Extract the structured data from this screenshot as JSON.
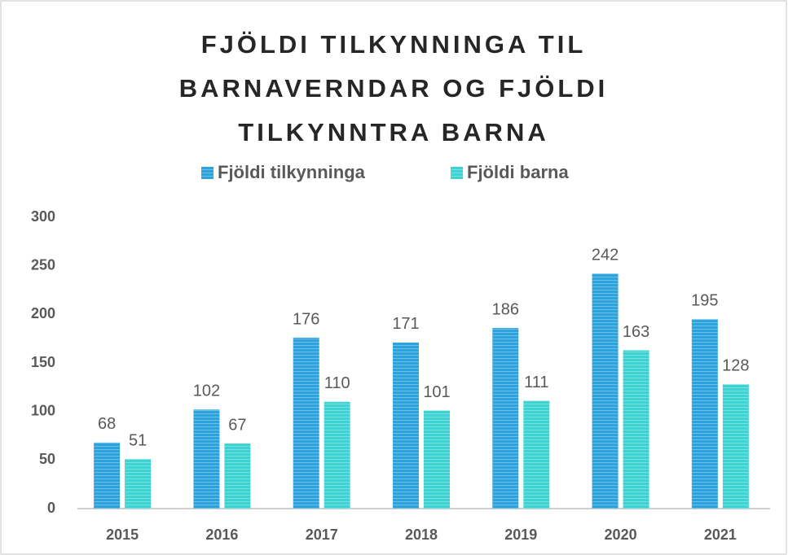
{
  "chart_data": {
    "type": "bar",
    "title": "FJÖLDI TILKYNNINGA TIL BARNAVERNDAR OG FJÖLDI TILKYNNTRA BARNA",
    "categories": [
      "2015",
      "2016",
      "2017",
      "2018",
      "2019",
      "2020",
      "2021"
    ],
    "series": [
      {
        "name": "Fjöldi tilkynninga",
        "color": "#2da3dd",
        "values": [
          68,
          102,
          176,
          171,
          186,
          242,
          195
        ]
      },
      {
        "name": "Fjöldi barna",
        "color": "#3ed3d3",
        "values": [
          51,
          67,
          110,
          101,
          111,
          163,
          128
        ]
      }
    ],
    "ylim": [
      0,
      300
    ],
    "yticks": [
      0,
      50,
      100,
      150,
      200,
      250,
      300
    ],
    "grid": false
  }
}
